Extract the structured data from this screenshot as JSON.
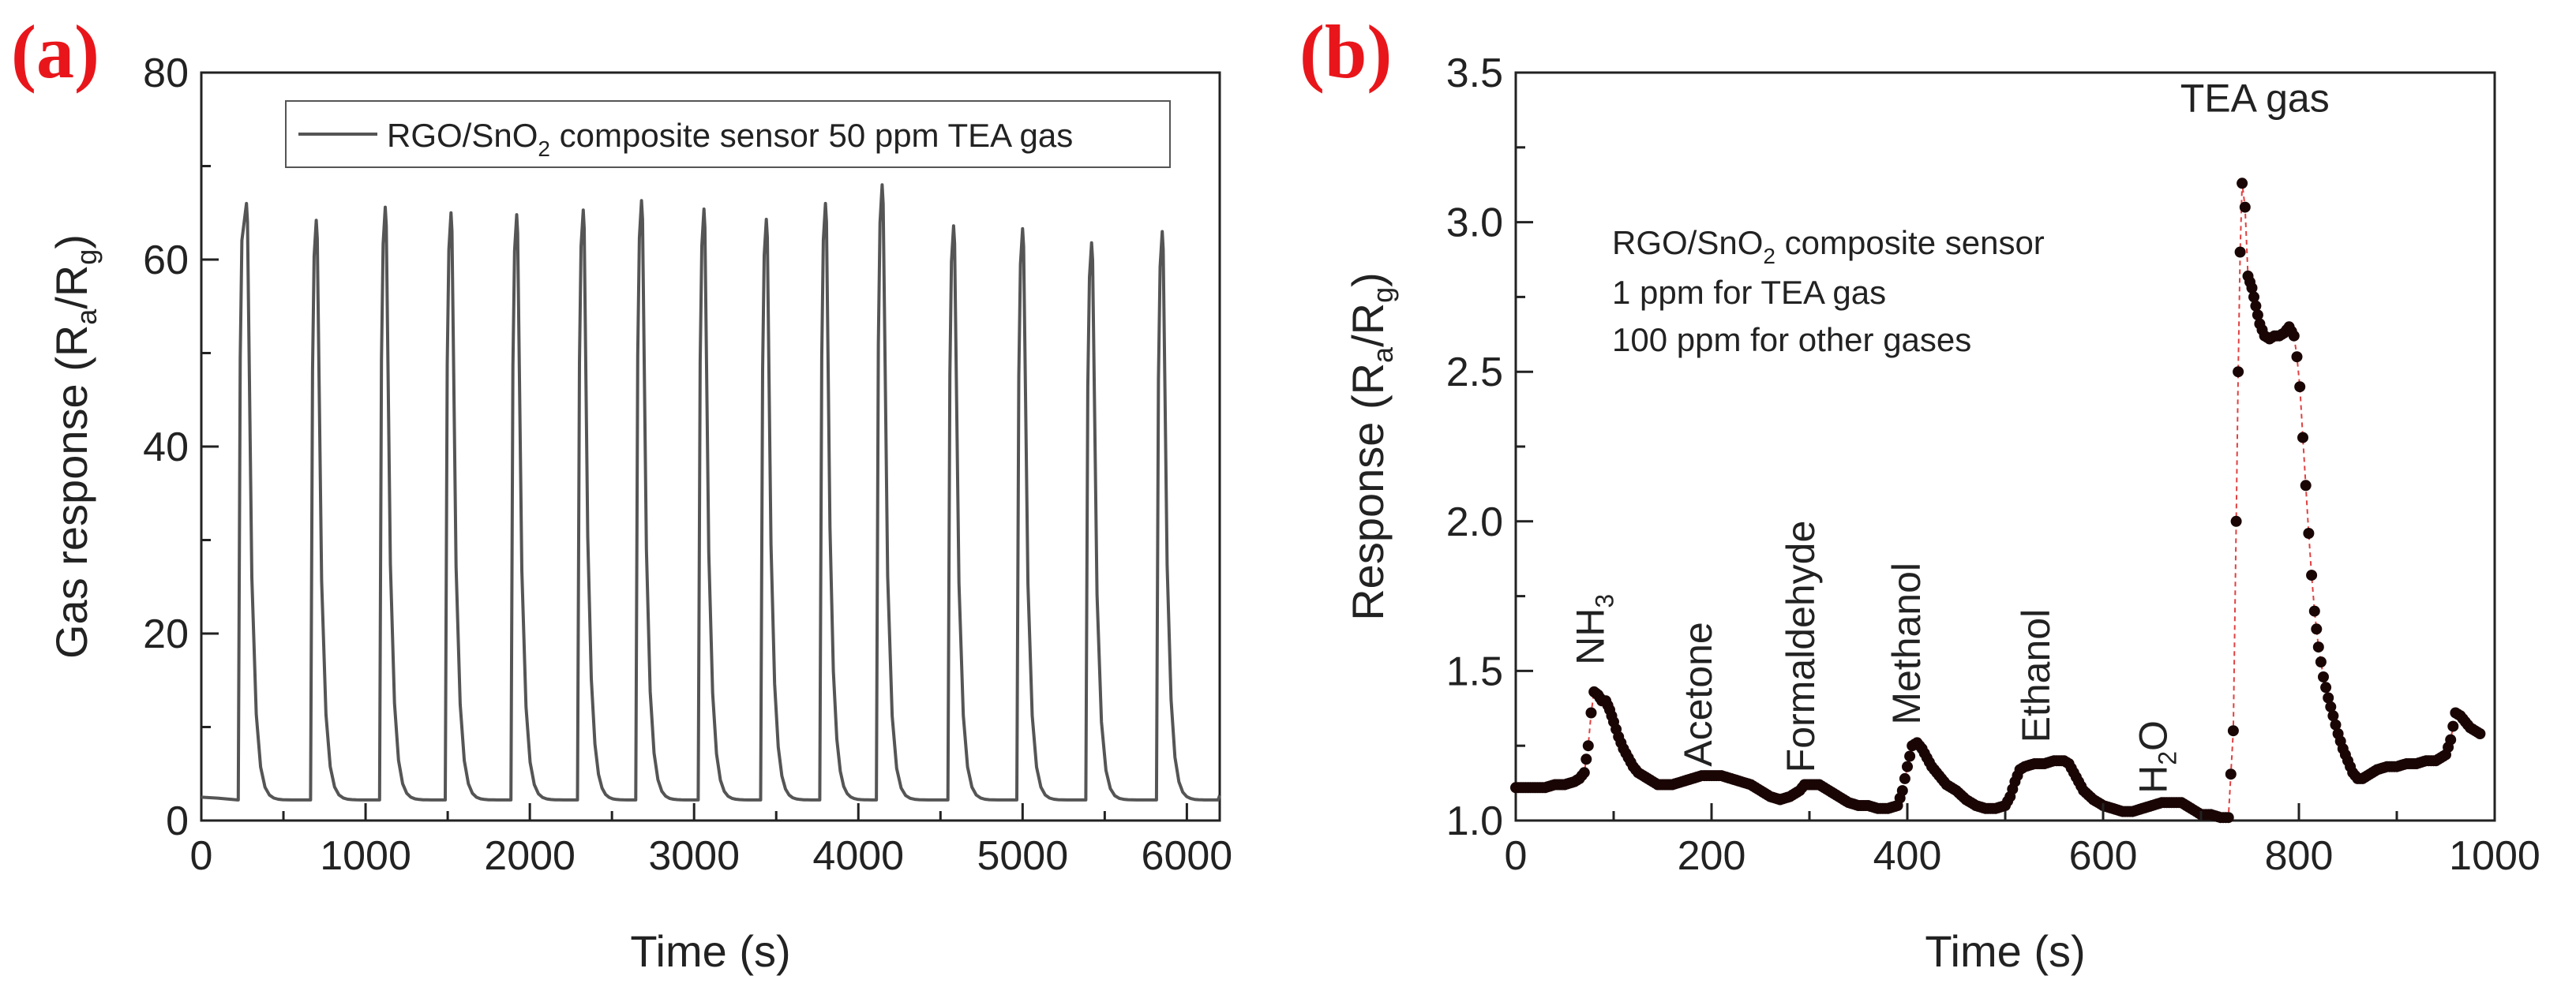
{
  "chart_data": [
    {
      "panel_label": "(a)",
      "type": "line",
      "xlabel": "Time (s)",
      "ylabel": "Gas response (Ra/Rg)",
      "ylabel_parts": {
        "main": "Gas response (R",
        "sub1": "a",
        "mid": "/R",
        "sub2": "g",
        "end": ")"
      },
      "xlim": [
        0,
        6200
      ],
      "ylim": [
        0,
        80
      ],
      "x_ticks": [
        0,
        1000,
        2000,
        3000,
        4000,
        5000,
        6000
      ],
      "y_ticks": [
        0,
        20,
        40,
        60,
        80
      ],
      "legend": {
        "text": "RGO/SnO2 composite sensor 50 ppm TEA gas",
        "parts": {
          "pre": "RGO/SnO",
          "sub": "2",
          "post": " composite sensor 50 ppm TEA gas"
        },
        "placement": "top-center"
      },
      "series": [
        {
          "name": "RGO/SnO2 composite sensor 50 ppm TEA gas",
          "color": "#555555",
          "baseline_start": 2.5,
          "baseline": 2.2,
          "cycles": [
            {
              "start": 225,
              "peak_time": 275,
              "peak": 66.0
            },
            {
              "start": 665,
              "peak_time": 700,
              "peak": 64.2
            },
            {
              "start": 1085,
              "peak_time": 1120,
              "peak": 65.6
            },
            {
              "start": 1485,
              "peak_time": 1520,
              "peak": 65.0
            },
            {
              "start": 1885,
              "peak_time": 1920,
              "peak": 64.8
            },
            {
              "start": 2290,
              "peak_time": 2325,
              "peak": 65.3
            },
            {
              "start": 2645,
              "peak_time": 2680,
              "peak": 66.3
            },
            {
              "start": 3025,
              "peak_time": 3060,
              "peak": 65.4
            },
            {
              "start": 3405,
              "peak_time": 3440,
              "peak": 64.3
            },
            {
              "start": 3765,
              "peak_time": 3800,
              "peak": 66.0
            },
            {
              "start": 4110,
              "peak_time": 4145,
              "peak": 68.0
            },
            {
              "start": 4545,
              "peak_time": 4580,
              "peak": 63.6
            },
            {
              "start": 4965,
              "peak_time": 5000,
              "peak": 63.3
            },
            {
              "start": 5385,
              "peak_time": 5420,
              "peak": 61.8
            },
            {
              "start": 5815,
              "peak_time": 5850,
              "peak": 63.0
            }
          ]
        }
      ]
    },
    {
      "panel_label": "(b)",
      "type": "scatter",
      "xlabel": "Time (s)",
      "ylabel": "Response (Ra/Rg)",
      "ylabel_parts": {
        "main": "Response (R",
        "sub1": "a",
        "mid": "/R",
        "sub2": "g",
        "end": ")"
      },
      "xlim": [
        0,
        1000
      ],
      "ylim": [
        1.0,
        3.5
      ],
      "x_ticks": [
        0,
        200,
        400,
        600,
        800,
        1000
      ],
      "y_ticks": [
        1.0,
        1.5,
        2.0,
        2.5,
        3.0,
        3.5
      ],
      "annotation": {
        "line1": "RGO/SnO2 composite sensor",
        "line1_parts": {
          "pre": "RGO/SnO",
          "sub": "2",
          "post": " composite sensor"
        },
        "line2": "1 ppm for TEA gas",
        "line3": "100 ppm for other gases"
      },
      "gas_labels": [
        {
          "text": "NH3",
          "main": "NH",
          "sub": "3",
          "x": 90,
          "y": 1.52,
          "rotated": true
        },
        {
          "text": "Acetone",
          "main": "Acetone",
          "sub": "",
          "x": 200,
          "y": 1.18,
          "rotated": true
        },
        {
          "text": "Formaldehyde",
          "main": "Formaldehyde",
          "sub": "",
          "x": 305,
          "y": 1.16,
          "rotated": true
        },
        {
          "text": "Methanol",
          "main": "Methanol",
          "sub": "",
          "x": 413,
          "y": 1.32,
          "rotated": true
        },
        {
          "text": "Ethanol",
          "main": "Ethanol",
          "sub": "",
          "x": 545,
          "y": 1.26,
          "rotated": true
        },
        {
          "text": "H2O",
          "main": "H",
          "sub": "2",
          "main2": "O",
          "x": 665,
          "y": 1.09,
          "rotated": true
        },
        {
          "text": "TEA gas",
          "main": "TEA gas",
          "sub": "",
          "x": 755,
          "y": 3.37,
          "rotated": false
        }
      ],
      "marker_color": "#1a0505",
      "line_color": "#e04040",
      "series": [
        {
          "name": "Response",
          "points": [
            [
              0,
              1.11
            ],
            [
              10,
              1.11
            ],
            [
              20,
              1.11
            ],
            [
              30,
              1.11
            ],
            [
              40,
              1.12
            ],
            [
              50,
              1.12
            ],
            [
              60,
              1.13
            ],
            [
              65,
              1.14
            ],
            [
              70,
              1.16
            ],
            [
              74,
              1.25
            ],
            [
              77,
              1.36
            ],
            [
              80,
              1.43
            ],
            [
              84,
              1.42
            ],
            [
              88,
              1.4
            ],
            [
              92,
              1.4
            ],
            [
              96,
              1.37
            ],
            [
              100,
              1.33
            ],
            [
              105,
              1.28
            ],
            [
              110,
              1.24
            ],
            [
              115,
              1.21
            ],
            [
              120,
              1.18
            ],
            [
              125,
              1.16
            ],
            [
              130,
              1.15
            ],
            [
              135,
              1.14
            ],
            [
              140,
              1.13
            ],
            [
              145,
              1.12
            ],
            [
              150,
              1.12
            ],
            [
              160,
              1.12
            ],
            [
              170,
              1.13
            ],
            [
              180,
              1.14
            ],
            [
              190,
              1.15
            ],
            [
              200,
              1.15
            ],
            [
              210,
              1.15
            ],
            [
              220,
              1.14
            ],
            [
              230,
              1.13
            ],
            [
              240,
              1.12
            ],
            [
              250,
              1.1
            ],
            [
              260,
              1.08
            ],
            [
              270,
              1.07
            ],
            [
              280,
              1.08
            ],
            [
              290,
              1.1
            ],
            [
              295,
              1.12
            ],
            [
              300,
              1.12
            ],
            [
              305,
              1.12
            ],
            [
              310,
              1.12
            ],
            [
              320,
              1.1
            ],
            [
              330,
              1.08
            ],
            [
              340,
              1.06
            ],
            [
              350,
              1.05
            ],
            [
              360,
              1.05
            ],
            [
              370,
              1.04
            ],
            [
              380,
              1.04
            ],
            [
              390,
              1.05
            ],
            [
              395,
              1.1
            ],
            [
              400,
              1.18
            ],
            [
              405,
              1.25
            ],
            [
              410,
              1.26
            ],
            [
              415,
              1.24
            ],
            [
              420,
              1.21
            ],
            [
              425,
              1.18
            ],
            [
              430,
              1.16
            ],
            [
              435,
              1.14
            ],
            [
              440,
              1.12
            ],
            [
              450,
              1.1
            ],
            [
              460,
              1.07
            ],
            [
              470,
              1.05
            ],
            [
              480,
              1.04
            ],
            [
              490,
              1.04
            ],
            [
              500,
              1.05
            ],
            [
              505,
              1.08
            ],
            [
              510,
              1.13
            ],
            [
              515,
              1.17
            ],
            [
              520,
              1.18
            ],
            [
              530,
              1.19
            ],
            [
              540,
              1.19
            ],
            [
              550,
              1.2
            ],
            [
              560,
              1.2
            ],
            [
              565,
              1.19
            ],
            [
              570,
              1.16
            ],
            [
              575,
              1.13
            ],
            [
              580,
              1.1
            ],
            [
              590,
              1.07
            ],
            [
              600,
              1.05
            ],
            [
              610,
              1.04
            ],
            [
              620,
              1.03
            ],
            [
              630,
              1.03
            ],
            [
              640,
              1.04
            ],
            [
              650,
              1.05
            ],
            [
              660,
              1.06
            ],
            [
              670,
              1.06
            ],
            [
              680,
              1.06
            ],
            [
              690,
              1.04
            ],
            [
              700,
              1.02
            ],
            [
              710,
              1.02
            ],
            [
              720,
              1.01
            ],
            [
              728,
              1.01
            ],
            [
              733,
              1.3
            ],
            [
              736,
              2.0
            ],
            [
              738,
              2.5
            ],
            [
              740,
              2.9
            ],
            [
              742,
              3.13
            ],
            [
              745,
              3.05
            ],
            [
              748,
              2.82
            ],
            [
              752,
              2.78
            ],
            [
              756,
              2.72
            ],
            [
              760,
              2.66
            ],
            [
              765,
              2.62
            ],
            [
              770,
              2.61
            ],
            [
              775,
              2.62
            ],
            [
              780,
              2.62
            ],
            [
              785,
              2.63
            ],
            [
              790,
              2.65
            ],
            [
              795,
              2.62
            ],
            [
              798,
              2.55
            ],
            [
              801,
              2.45
            ],
            [
              804,
              2.28
            ],
            [
              807,
              2.12
            ],
            [
              810,
              1.96
            ],
            [
              813,
              1.82
            ],
            [
              816,
              1.7
            ],
            [
              820,
              1.58
            ],
            [
              825,
              1.48
            ],
            [
              830,
              1.41
            ],
            [
              835,
              1.35
            ],
            [
              840,
              1.29
            ],
            [
              845,
              1.24
            ],
            [
              850,
              1.2
            ],
            [
              855,
              1.16
            ],
            [
              860,
              1.14
            ],
            [
              865,
              1.14
            ],
            [
              870,
              1.15
            ],
            [
              880,
              1.17
            ],
            [
              890,
              1.18
            ],
            [
              900,
              1.18
            ],
            [
              910,
              1.19
            ],
            [
              920,
              1.19
            ],
            [
              930,
              1.2
            ],
            [
              940,
              1.2
            ],
            [
              950,
              1.22
            ],
            [
              955,
              1.27
            ],
            [
              960,
              1.36
            ],
            [
              965,
              1.35
            ],
            [
              970,
              1.33
            ],
            [
              975,
              1.31
            ],
            [
              980,
              1.3
            ],
            [
              985,
              1.29
            ]
          ]
        }
      ]
    }
  ]
}
